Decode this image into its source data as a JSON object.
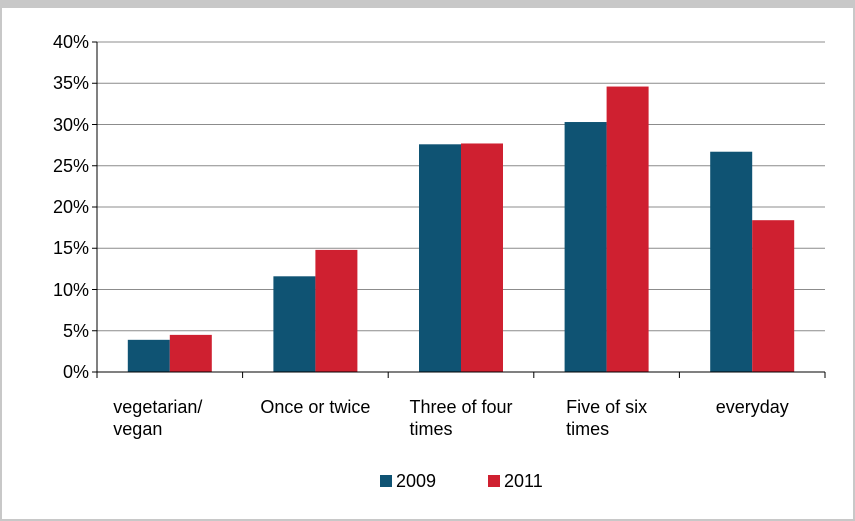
{
  "chart_data": {
    "type": "bar",
    "categories": [
      "vegetarian/\nvegan",
      "Once or twice",
      "Three of four\ntimes",
      "Five of six\ntimes",
      "everyday"
    ],
    "series": [
      {
        "name": "2009",
        "color": "#0f5373",
        "values": [
          3.9,
          11.6,
          27.6,
          30.3,
          26.7
        ]
      },
      {
        "name": "2011",
        "color": "#cf2030",
        "values": [
          4.5,
          14.8,
          27.7,
          34.6,
          18.4
        ]
      }
    ],
    "ylim": [
      0,
      40
    ],
    "yticks": [
      {
        "value": 0,
        "label": "0%"
      },
      {
        "value": 5,
        "label": "5%"
      },
      {
        "value": 10,
        "label": "10%"
      },
      {
        "value": 15,
        "label": "15%"
      },
      {
        "value": 20,
        "label": "20%"
      },
      {
        "value": 25,
        "label": "25%"
      },
      {
        "value": 30,
        "label": "30%"
      },
      {
        "value": 35,
        "label": "35%"
      },
      {
        "value": 40,
        "label": "40%"
      }
    ],
    "grid": true,
    "legend": "bottom"
  }
}
